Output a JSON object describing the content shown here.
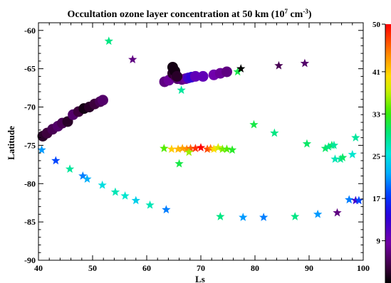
{
  "chart_data": {
    "type": "scatter",
    "title": "Occultation ozone layer concentration at 50 km (10",
    "title_exp": "7",
    "title_unit": " cm",
    "title_unit_exp": "-3",
    "title_close": ")",
    "xlabel": "Ls",
    "ylabel": "Latitude",
    "xlim": [
      40,
      100
    ],
    "ylim": [
      -90,
      -59
    ],
    "xticks": [
      40,
      50,
      60,
      70,
      80,
      90,
      100
    ],
    "yticks": [
      -60,
      -65,
      -70,
      -75,
      -80,
      -85,
      -90
    ],
    "grid": false,
    "colorbar": {
      "min": 1,
      "max": 50,
      "ticks": [
        50,
        41,
        33,
        25,
        17,
        9
      ],
      "colormap": "rainbow (black-purple-blue-cyan-green-yellow-orange-red)"
    },
    "series": [
      {
        "marker": "circle",
        "points": [
          {
            "x": 40.8,
            "y": -73.8,
            "c": 3
          },
          {
            "x": 41.6,
            "y": -73.4,
            "c": 4
          },
          {
            "x": 42.6,
            "y": -72.9,
            "c": 5
          },
          {
            "x": 43.6,
            "y": -72.5,
            "c": 6
          },
          {
            "x": 44.4,
            "y": -72.1,
            "c": 5
          },
          {
            "x": 45.4,
            "y": -71.9,
            "c": 3
          },
          {
            "x": 46.4,
            "y": -71.0,
            "c": 6
          },
          {
            "x": 47.4,
            "y": -70.6,
            "c": 4
          },
          {
            "x": 48.4,
            "y": -70.2,
            "c": 2
          },
          {
            "x": 49.4,
            "y": -70.0,
            "c": 3
          },
          {
            "x": 50.4,
            "y": -69.6,
            "c": 4
          },
          {
            "x": 51.4,
            "y": -69.3,
            "c": 5
          },
          {
            "x": 51.9,
            "y": -69.1,
            "c": 6
          },
          {
            "x": 63.3,
            "y": -66.7,
            "c": 7
          },
          {
            "x": 64.1,
            "y": -66.5,
            "c": 8
          },
          {
            "x": 64.8,
            "y": -65.6,
            "c": 3
          },
          {
            "x": 65.4,
            "y": -66.0,
            "c": 4
          },
          {
            "x": 65.7,
            "y": -66.3,
            "c": 6
          },
          {
            "x": 66.5,
            "y": -66.4,
            "c": 7
          },
          {
            "x": 67.2,
            "y": -66.3,
            "c": 8
          },
          {
            "x": 67.7,
            "y": -66.2,
            "c": 12
          },
          {
            "x": 68.3,
            "y": -66.1,
            "c": 13
          },
          {
            "x": 69.0,
            "y": -66.0,
            "c": 10
          },
          {
            "x": 70.4,
            "y": -66.0,
            "c": 10
          },
          {
            "x": 72.4,
            "y": -65.8,
            "c": 9
          },
          {
            "x": 73.6,
            "y": -65.6,
            "c": 8
          },
          {
            "x": 74.8,
            "y": -65.4,
            "c": 7
          },
          {
            "x": 64.8,
            "y": -64.8,
            "c": 2
          },
          {
            "x": 65.2,
            "y": -65.3,
            "c": 2
          },
          {
            "x": 65.6,
            "y": -66.0,
            "c": 3
          }
        ]
      },
      {
        "marker": "star",
        "points": [
          {
            "x": 40.6,
            "y": -75.6,
            "c": 21
          },
          {
            "x": 43.2,
            "y": -77.0,
            "c": 18
          },
          {
            "x": 45.8,
            "y": -78.1,
            "c": 28
          },
          {
            "x": 48.2,
            "y": -79.0,
            "c": 20
          },
          {
            "x": 49.0,
            "y": -79.4,
            "c": 22
          },
          {
            "x": 51.8,
            "y": -80.2,
            "c": 25
          },
          {
            "x": 54.2,
            "y": -81.1,
            "c": 27
          },
          {
            "x": 56.0,
            "y": -81.6,
            "c": 26
          },
          {
            "x": 58.0,
            "y": -82.2,
            "c": 24
          },
          {
            "x": 60.6,
            "y": -82.8,
            "c": 27
          },
          {
            "x": 63.6,
            "y": -83.4,
            "c": 20
          },
          {
            "x": 53.0,
            "y": -61.4,
            "c": 29
          },
          {
            "x": 57.4,
            "y": -63.8,
            "c": 7
          },
          {
            "x": 63.2,
            "y": -75.4,
            "c": 34
          },
          {
            "x": 64.6,
            "y": -75.5,
            "c": 41
          },
          {
            "x": 65.8,
            "y": -75.5,
            "c": 42
          },
          {
            "x": 66.6,
            "y": -75.4,
            "c": 43
          },
          {
            "x": 67.4,
            "y": -75.5,
            "c": 44
          },
          {
            "x": 68.1,
            "y": -75.4,
            "c": 46
          },
          {
            "x": 69.0,
            "y": -75.4,
            "c": 48
          },
          {
            "x": 70.0,
            "y": -75.3,
            "c": 50
          },
          {
            "x": 71.2,
            "y": -75.5,
            "c": 47
          },
          {
            "x": 71.8,
            "y": -75.4,
            "c": 45
          },
          {
            "x": 72.4,
            "y": -75.5,
            "c": 40
          },
          {
            "x": 73.2,
            "y": -75.3,
            "c": 38
          },
          {
            "x": 74.0,
            "y": -75.5,
            "c": 35
          },
          {
            "x": 74.8,
            "y": -75.5,
            "c": 34
          },
          {
            "x": 75.8,
            "y": -75.6,
            "c": 32
          },
          {
            "x": 66.0,
            "y": -77.4,
            "c": 31
          },
          {
            "x": 67.8,
            "y": -75.9,
            "c": 36
          },
          {
            "x": 66.4,
            "y": -67.8,
            "c": 28
          },
          {
            "x": 76.8,
            "y": -65.4,
            "c": 31
          },
          {
            "x": 77.4,
            "y": -65.0,
            "c": 1
          },
          {
            "x": 84.4,
            "y": -64.6,
            "c": 5
          },
          {
            "x": 89.2,
            "y": -64.3,
            "c": 6
          },
          {
            "x": 79.8,
            "y": -72.3,
            "c": 31
          },
          {
            "x": 83.6,
            "y": -73.4,
            "c": 29
          },
          {
            "x": 89.6,
            "y": -74.8,
            "c": 30
          },
          {
            "x": 93.0,
            "y": -75.4,
            "c": 30
          },
          {
            "x": 93.6,
            "y": -75.2,
            "c": 29
          },
          {
            "x": 94.2,
            "y": -75.0,
            "c": 30
          },
          {
            "x": 94.6,
            "y": -75.0,
            "c": 28
          },
          {
            "x": 94.8,
            "y": -76.8,
            "c": 27
          },
          {
            "x": 95.8,
            "y": -76.8,
            "c": 28
          },
          {
            "x": 96.2,
            "y": -76.6,
            "c": 30
          },
          {
            "x": 98.0,
            "y": -76.2,
            "c": 26
          },
          {
            "x": 98.6,
            "y": -74.0,
            "c": 28
          },
          {
            "x": 73.6,
            "y": -84.3,
            "c": 29
          },
          {
            "x": 77.8,
            "y": -84.4,
            "c": 21
          },
          {
            "x": 81.6,
            "y": -84.4,
            "c": 20
          },
          {
            "x": 87.4,
            "y": -84.3,
            "c": 29
          },
          {
            "x": 91.6,
            "y": -84.0,
            "c": 21
          },
          {
            "x": 95.2,
            "y": -83.8,
            "c": 7
          },
          {
            "x": 97.4,
            "y": -82.1,
            "c": 20
          },
          {
            "x": 98.6,
            "y": -82.2,
            "c": 12
          },
          {
            "x": 99.2,
            "y": -82.2,
            "c": 18
          }
        ]
      }
    ]
  }
}
